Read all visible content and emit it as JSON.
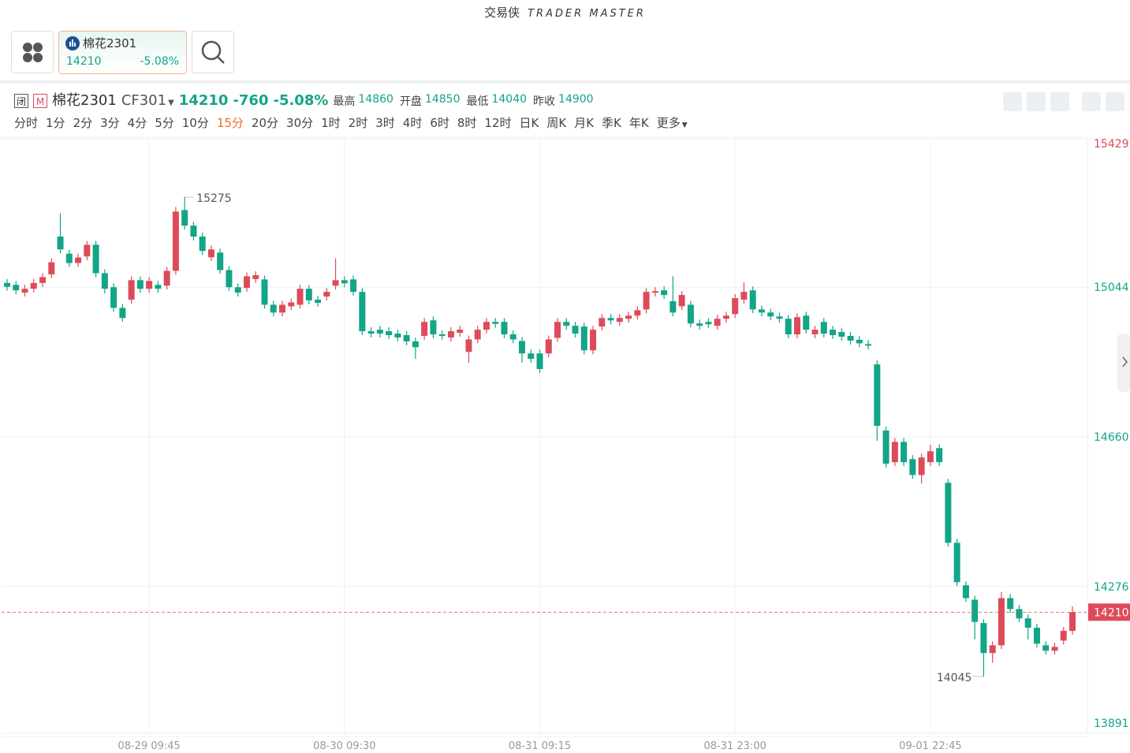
{
  "app": {
    "brand": "交易侠",
    "brand_en": "TRADER MASTER"
  },
  "quote": {
    "closed_badge": "闭",
    "market_badge": "M",
    "name": "棉花2301",
    "code": "CF301",
    "price": 14210,
    "change": -760,
    "change_pct": "-5.08%",
    "stats": [
      {
        "label": "最高",
        "value": 14860
      },
      {
        "label": "开盘",
        "value": 14850
      },
      {
        "label": "最低",
        "value": 14040
      },
      {
        "label": "昨收",
        "value": 14900
      }
    ]
  },
  "periods": [
    "分时",
    "1分",
    "2分",
    "3分",
    "4分",
    "5分",
    "10分",
    "15分",
    "20分",
    "30分",
    "1时",
    "2时",
    "3时",
    "4时",
    "6时",
    "8时",
    "12时",
    "日K",
    "周K",
    "月K",
    "季K",
    "年K",
    "更多"
  ],
  "active_period": "15分",
  "chart_data": {
    "type": "candlestick",
    "categories": [
      null,
      null,
      null,
      null,
      null,
      null,
      null,
      null,
      null,
      null,
      null,
      null,
      null,
      null,
      null,
      null,
      "08-29 09:45",
      null,
      null,
      null,
      null,
      null,
      null,
      null,
      null,
      null,
      null,
      null,
      null,
      null,
      null,
      null,
      null,
      null,
      null,
      null,
      null,
      null,
      "08-30 09:30",
      null,
      null,
      null,
      null,
      null,
      null,
      null,
      null,
      null,
      null,
      null,
      null,
      null,
      null,
      null,
      null,
      null,
      null,
      null,
      null,
      null,
      "08-31 09:15",
      null,
      null,
      null,
      null,
      null,
      null,
      null,
      null,
      null,
      null,
      null,
      null,
      null,
      null,
      null,
      null,
      null,
      null,
      null,
      null,
      null,
      "08-31 23:00",
      null,
      null,
      null,
      null,
      null,
      null,
      null,
      null,
      null,
      null,
      null,
      null,
      null,
      null,
      null,
      null,
      null,
      null,
      null,
      null,
      null,
      "09-01 22:45",
      null,
      null,
      null,
      null,
      null,
      null,
      null,
      null,
      null,
      null,
      null,
      null,
      null,
      null,
      null,
      null
    ],
    "open": [
      15055,
      15050,
      15030,
      15040,
      15055,
      15077,
      15174,
      15130,
      15106,
      15123,
      15153,
      15080,
      15044,
      14991,
      15012,
      15062,
      15040,
      15050,
      15048,
      15086,
      15242,
      15202,
      15174,
      15121,
      15133,
      15088,
      15044,
      15042,
      15065,
      15064,
      14999,
      14979,
      14995,
      14999,
      15040,
      15012,
      15020,
      15048,
      15062,
      15064,
      15032,
      14931,
      14935,
      14931,
      14925,
      14921,
      14905,
      14919,
      14959,
      14923,
      14915,
      14927,
      14878,
      14910,
      14935,
      14955,
      14955,
      14923,
      14906,
      14874,
      14874,
      14874,
      14914,
      14955,
      14945,
      14943,
      14882,
      14943,
      14965,
      14955,
      14963,
      14971,
      14987,
      15030,
      15036,
      15008,
      14995,
      14999,
      14951,
      14955,
      14945,
      14963,
      14975,
      15012,
      15036,
      14987,
      14979,
      14969,
      14963,
      14923,
      14971,
      14923,
      14955,
      14935,
      14929,
      14919,
      14909,
      14898,
      14846,
      14676,
      14595,
      14647,
      14603,
      14562,
      14595,
      14631,
      14542,
      14388,
      14279,
      14242,
      14182,
      14105,
      14125,
      14246,
      14218,
      14194,
      14170,
      14125,
      14111,
      14137,
      14162
    ],
    "high": [
      15065,
      15060,
      15050,
      15065,
      15080,
      15118,
      15234,
      15140,
      15130,
      15163,
      15163,
      15090,
      15054,
      15001,
      15072,
      15072,
      15070,
      15060,
      15096,
      15250,
      15275,
      15212,
      15184,
      15151,
      15143,
      15098,
      15054,
      15082,
      15085,
      15074,
      15009,
      15009,
      15015,
      15050,
      15050,
      15022,
      15042,
      15118,
      15072,
      15074,
      15042,
      14941,
      14945,
      14941,
      14935,
      14931,
      14915,
      14965,
      14969,
      14933,
      14941,
      14945,
      14920,
      14945,
      14965,
      14965,
      14965,
      14933,
      14916,
      14884,
      14884,
      14920,
      14965,
      14965,
      14955,
      14953,
      14945,
      14975,
      14975,
      14975,
      14981,
      14995,
      15042,
      15044,
      15046,
      15072,
      15034,
      15009,
      14961,
      14965,
      14973,
      14981,
      15026,
      15056,
      15046,
      14997,
      14989,
      14979,
      14973,
      14977,
      14981,
      14945,
      14965,
      14945,
      14939,
      14929,
      14919,
      14908,
      14856,
      14686,
      14657,
      14657,
      14613,
      14617,
      14640,
      14641,
      14552,
      14398,
      14289,
      14252,
      14192,
      14135,
      14262,
      14256,
      14228,
      14204,
      14180,
      14135,
      14131,
      14172,
      14225
    ],
    "low": [
      15035,
      15026,
      15020,
      15030,
      15045,
      15067,
      15131,
      15096,
      15096,
      15113,
      15070,
      15028,
      14981,
      14955,
      15002,
      15030,
      15030,
      15030,
      15038,
      15076,
      15192,
      15164,
      15127,
      15111,
      15078,
      15034,
      15020,
      15032,
      15055,
      14989,
      14969,
      14969,
      14985,
      14989,
      15000,
      14994,
      15010,
      15038,
      15044,
      15022,
      14921,
      14915,
      14915,
      14911,
      14905,
      14895,
      14860,
      14909,
      14913,
      14909,
      14905,
      14917,
      14850,
      14900,
      14925,
      14940,
      14913,
      14900,
      14850,
      14850,
      14824,
      14864,
      14904,
      14935,
      14915,
      14872,
      14872,
      14933,
      14949,
      14945,
      14953,
      14961,
      14977,
      15020,
      15014,
      14969,
      14985,
      14941,
      14935,
      14939,
      14935,
      14953,
      14965,
      15002,
      14977,
      14969,
      14959,
      14953,
      14913,
      14913,
      14925,
      14913,
      14915,
      14911,
      14907,
      14897,
      14890,
      14884,
      14650,
      14581,
      14585,
      14585,
      14552,
      14540,
      14585,
      14585,
      14378,
      14277,
      14236,
      14140,
      14045,
      14080,
      14115,
      14208,
      14184,
      14140,
      14119,
      14101,
      14101,
      14127,
      14152
    ],
    "close": [
      15045,
      15036,
      15040,
      15055,
      15070,
      15108,
      15141,
      15106,
      15120,
      15153,
      15080,
      15040,
      14991,
      14965,
      15062,
      15040,
      15060,
      15040,
      15086,
      15238,
      15202,
      15174,
      15137,
      15141,
      15088,
      15044,
      15030,
      15072,
      15075,
      14999,
      14979,
      14999,
      15005,
      15040,
      15010,
      15004,
      15032,
      15062,
      15054,
      15032,
      14931,
      14925,
      14925,
      14921,
      14915,
      14905,
      14890,
      14955,
      14923,
      14919,
      14931,
      14935,
      14910,
      14935,
      14955,
      14950,
      14923,
      14910,
      14874,
      14860,
      14834,
      14910,
      14955,
      14945,
      14925,
      14882,
      14935,
      14965,
      14959,
      14965,
      14971,
      14985,
      15032,
      15034,
      15024,
      14979,
      15024,
      14951,
      14945,
      14949,
      14963,
      14971,
      15016,
      15032,
      14987,
      14979,
      14969,
      14963,
      14923,
      14967,
      14935,
      14935,
      14925,
      14921,
      14917,
      14907,
      14900,
      14894,
      14688,
      14591,
      14647,
      14595,
      14562,
      14607,
      14623,
      14595,
      14388,
      14287,
      14246,
      14185,
      14105,
      14125,
      14246,
      14218,
      14194,
      14170,
      14129,
      14111,
      14121,
      14162,
      14210
    ],
    "up_color": "#dd4b5a",
    "down_color": "#12a587",
    "ylim": [
      13891,
      15429
    ],
    "yticks": [
      13891,
      14276,
      14660,
      15044,
      15429
    ],
    "grid": true
  }
}
